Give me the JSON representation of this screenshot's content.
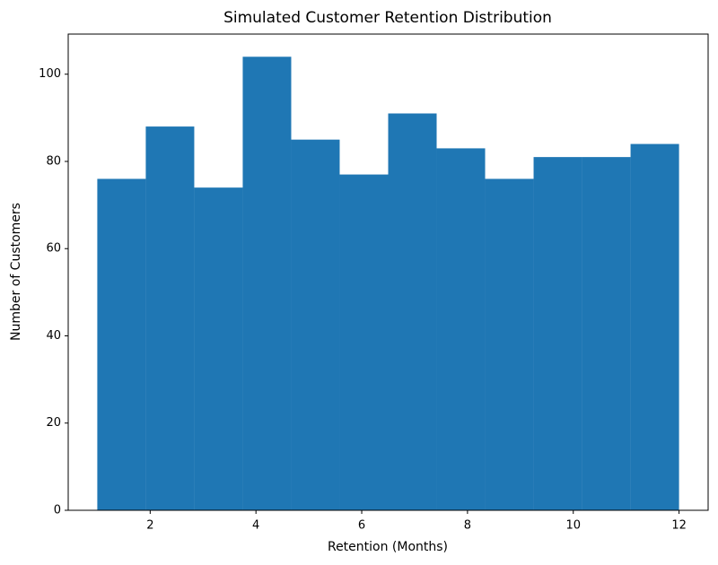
{
  "chart_data": {
    "type": "histogram",
    "title": "Simulated Customer Retention Distribution",
    "x_label": "Retention (Months)",
    "y_label": "Number of Customers",
    "bins": [
      1,
      1.9167,
      2.8333,
      3.75,
      4.6667,
      5.5833,
      6.5,
      7.4167,
      8.3333,
      9.25,
      10.1667,
      11.0833,
      12
    ],
    "counts": [
      76,
      88,
      74,
      104,
      85,
      77,
      91,
      83,
      76,
      81,
      81,
      84
    ],
    "color": "#1f77b4",
    "xlim": [
      0.45,
      12.55
    ],
    "xticks": [
      2,
      4,
      6,
      8,
      10,
      12
    ],
    "ylim": [
      0,
      109.2
    ],
    "yticks": [
      0,
      20,
      40,
      60,
      80,
      100
    ],
    "grid": false
  }
}
